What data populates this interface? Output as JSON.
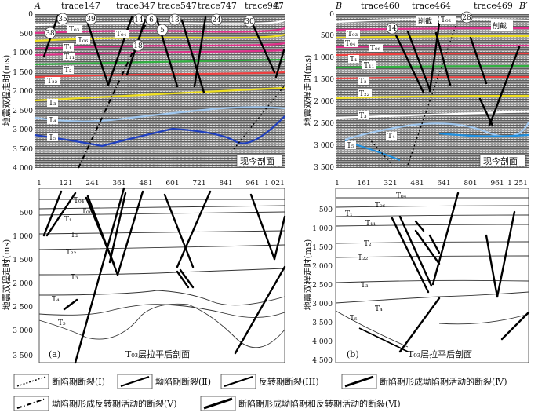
{
  "panels": {
    "top_left": {
      "corner_left": "A",
      "corner_right": "A′",
      "traces": [
        "trace147",
        "trace347",
        "trace547",
        "trace747",
        "trace947"
      ],
      "circles": [
        "35",
        "39",
        "14",
        "6",
        "13",
        "24",
        "30",
        "38",
        "5",
        "18"
      ],
      "horizons": [
        "T₀₃",
        "T₀₆",
        "T₀₄",
        "T₁",
        "T₁₁",
        "T₂",
        "T₂₂",
        "T₃",
        "T₄",
        "T₅"
      ],
      "caption": "现今剖面",
      "y_ticks": [
        "0",
        "500",
        "1 000",
        "1 500",
        "2 000",
        "2 500",
        "3 000",
        "3 500",
        "4 000"
      ],
      "y_label": "地震双程走时(ms)"
    },
    "top_right": {
      "corner_left": "B",
      "corner_right": "B′",
      "traces": [
        "trace460",
        "trace464",
        "trace469"
      ],
      "circles": [
        "14",
        "28"
      ],
      "horizons": [
        "T₀₃",
        "T₀₂",
        "T₀₄",
        "T₀₆",
        "T₁",
        "T₁₁",
        "T₂",
        "T₂₂",
        "T₃",
        "T₄",
        "T₅"
      ],
      "erosion": [
        "削截",
        "削截"
      ],
      "caption": "现今剖面",
      "y_ticks": [
        "0",
        "500",
        "1 000",
        "1 500",
        "2 000",
        "2 500",
        "3 000",
        "3 500"
      ],
      "y_label": "地震双程走时(ms)"
    },
    "bottom_left": {
      "x_ticks": [
        "1",
        "121",
        "241",
        "361",
        "481",
        "601",
        "721",
        "841",
        "961",
        "1 021"
      ],
      "y_ticks": [
        "500",
        "1 000",
        "1 500",
        "2 000",
        "2 500",
        "3 000",
        "3 500"
      ],
      "horizons": [
        "T₀₄",
        "T₀₆",
        "T₁",
        "T₂",
        "T₂₂",
        "T₃",
        "T₄",
        "T₅"
      ],
      "panel_id": "(a)",
      "caption": "T₀₃层拉平后剖面",
      "y_label": "地震双程走时(ms)"
    },
    "bottom_right": {
      "x_ticks": [
        "1",
        "161",
        "321",
        "481",
        "641",
        "801",
        "961",
        "1 251"
      ],
      "y_ticks": [
        "500",
        "1 000",
        "1 500",
        "2 000",
        "2 500",
        "3 000",
        "3 500",
        "4 000",
        "4 500"
      ],
      "horizons": [
        "T₀₄",
        "T₀₆",
        "T₁",
        "T₁₁",
        "T₂",
        "T₂₂",
        "T₃",
        "T₄",
        "T₅"
      ],
      "panel_id": "(b)",
      "caption": "T₀₃层拉平后剖面",
      "y_label": "地震双程走时(ms)"
    }
  },
  "legend": [
    "断陷期断裂(Ⅰ)",
    "坳陷期断裂(Ⅱ)",
    "反转期断裂(III)",
    "断陷期形成坳陷期活动的断裂(Ⅳ)",
    "坳陷期形成反转期活动的断裂(Ⅴ)",
    "断陷期形成坳陷期和反转期活动的断裂(Ⅵ)"
  ],
  "colors": {
    "T03": "#ffffff",
    "T06": "#f0e020",
    "T04": "#ffffff",
    "T1": "#e0308a",
    "T11": "#30b040",
    "T2": "#30c050",
    "T22": "#f04040",
    "T3": "#f0e020",
    "T4": "#a0c8f0",
    "T5": "#2040c0",
    "seismic_light": "#bdbdbd",
    "seismic_dark": "#6e6e6e"
  }
}
